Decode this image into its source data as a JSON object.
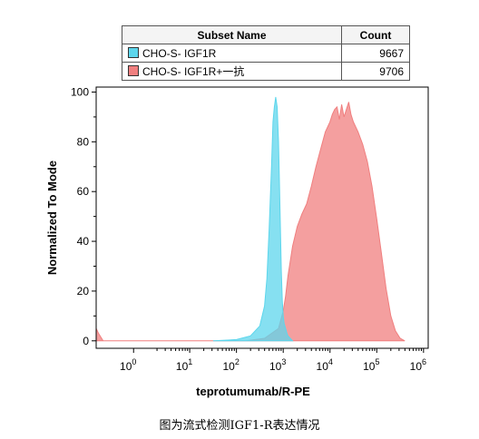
{
  "legend": {
    "header_name": "Subset Name",
    "header_count": "Count",
    "rows": [
      {
        "name": "CHO-S- IGF1R",
        "count": "9667",
        "color": "#5dd6ec"
      },
      {
        "name": "CHO-S- IGF1R+一抗",
        "count": "9706",
        "color": "#f07f7f"
      }
    ]
  },
  "caption": "图为流式检测IGF1-R表达情况",
  "chart_data": {
    "type": "area",
    "xscale": "log",
    "xlabel": "teprotumumab/R-PE",
    "ylabel": "Normalized To Mode",
    "xlim": [
      -1,
      6.1
    ],
    "ylim": [
      -3,
      102
    ],
    "y_ticks": [
      "0",
      "20",
      "40",
      "60",
      "80",
      "100"
    ],
    "x_ticks": [
      {
        "base": "10",
        "exp": "0",
        "pos": -0.2
      },
      {
        "base": "10",
        "exp": "1",
        "pos": 1
      },
      {
        "base": "10",
        "exp": "2",
        "pos": 2
      },
      {
        "base": "10",
        "exp": "3",
        "pos": 3
      },
      {
        "base": "10",
        "exp": "4",
        "pos": 4
      },
      {
        "base": "10",
        "exp": "5",
        "pos": 5
      },
      {
        "base": "10",
        "exp": "6",
        "pos": 6
      }
    ],
    "series": [
      {
        "name": "CHO-S- IGF1R+一抗",
        "color": "#f07f7f",
        "x": [
          -1,
          -0.95,
          -0.85,
          2.2,
          2.6,
          2.9,
          3.0,
          3.05,
          3.1,
          3.2,
          3.3,
          3.4,
          3.5,
          3.6,
          3.7,
          3.8,
          3.9,
          4.0,
          4.05,
          4.1,
          4.15,
          4.2,
          4.25,
          4.3,
          4.35,
          4.4,
          4.45,
          4.5,
          4.6,
          4.7,
          4.8,
          4.9,
          5.0,
          5.1,
          5.2,
          5.3,
          5.4,
          5.5,
          5.6
        ],
        "y": [
          5,
          3,
          0,
          0,
          1,
          5,
          12,
          18,
          26,
          38,
          46,
          51,
          55,
          62,
          70,
          77,
          84,
          88,
          91,
          93,
          94,
          89,
          95,
          90,
          93,
          96,
          91,
          88,
          84,
          79,
          72,
          62,
          49,
          35,
          21,
          10,
          4,
          1,
          0
        ]
      },
      {
        "name": "CHO-S- IGF1R",
        "color": "#5dd6ec",
        "x": [
          1.5,
          2.0,
          2.3,
          2.5,
          2.6,
          2.65,
          2.7,
          2.75,
          2.78,
          2.81,
          2.84,
          2.87,
          2.9,
          2.92,
          2.94,
          2.96,
          2.98,
          3.0,
          3.02,
          3.05,
          3.08,
          3.1,
          3.15,
          3.2
        ],
        "y": [
          0,
          0.5,
          2,
          6,
          14,
          25,
          45,
          70,
          88,
          94,
          98,
          94,
          80,
          62,
          45,
          28,
          16,
          10,
          7,
          5,
          3,
          2,
          1,
          0
        ]
      }
    ]
  }
}
